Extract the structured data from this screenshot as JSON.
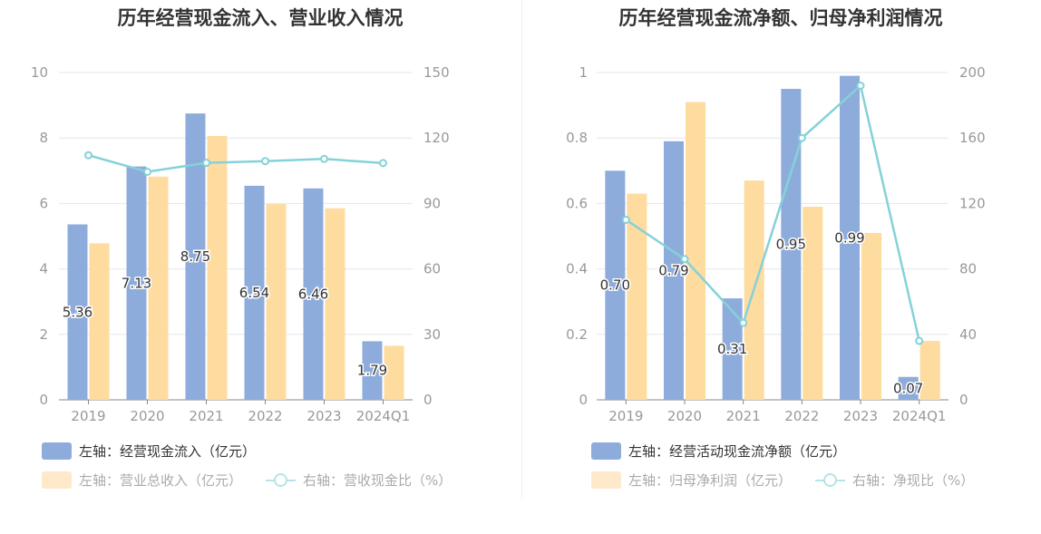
{
  "colors": {
    "bar1": "#8eacdb",
    "bar2": "#fedb9f",
    "line": "#84d2d8",
    "swatch_faded2": "#feeaca",
    "grid": "#e3e7f0",
    "axis": "#999999"
  },
  "chart_data": [
    {
      "type": "bar",
      "title": "历年经营现金流入、营业收入情况",
      "categories": [
        "2019",
        "2020",
        "2021",
        "2022",
        "2023",
        "2024Q1"
      ],
      "left_axis": {
        "ticks": [
          "0",
          "2",
          "4",
          "6",
          "8",
          "10"
        ],
        "ylim": [
          0,
          10
        ]
      },
      "right_axis": {
        "ticks": [
          "0",
          "30",
          "60",
          "90",
          "120",
          "150"
        ],
        "ylim": [
          0,
          150
        ]
      },
      "series": [
        {
          "name": "左轴：经营现金流入（亿元）",
          "type": "bar",
          "axis": "left",
          "values": [
            5.36,
            7.13,
            8.75,
            6.54,
            6.46,
            1.79
          ],
          "labels": [
            "5.36",
            "7.13",
            "8.75",
            "6.54",
            "6.46",
            "1.79"
          ]
        },
        {
          "name": "左轴：营业总收入（亿元）",
          "type": "bar",
          "axis": "left",
          "values": [
            4.78,
            6.82,
            8.06,
            5.98,
            5.85,
            1.65
          ]
        },
        {
          "name": "右轴：营收现金比（%）",
          "type": "line",
          "axis": "right",
          "values": [
            112.1,
            104.5,
            108.6,
            109.4,
            110.4,
            108.5
          ]
        }
      ],
      "legend_placement": "bottom-left",
      "grid": true
    },
    {
      "type": "bar",
      "title": "历年经营现金流净额、归母净利润情况",
      "categories": [
        "2019",
        "2020",
        "2021",
        "2022",
        "2023",
        "2024Q1"
      ],
      "left_axis": {
        "ticks": [
          "0",
          "0.2",
          "0.4",
          "0.6",
          "0.8",
          "1"
        ],
        "ylim": [
          0,
          1
        ]
      },
      "right_axis": {
        "ticks": [
          "0",
          "40",
          "80",
          "120",
          "160",
          "200"
        ],
        "ylim": [
          0,
          200
        ]
      },
      "series": [
        {
          "name": "左轴：经营活动现金流净额（亿元）",
          "type": "bar",
          "axis": "left",
          "values": [
            0.7,
            0.79,
            0.31,
            0.95,
            0.99,
            0.07
          ],
          "labels": [
            "0.70",
            "0.79",
            "0.31",
            "0.95",
            "0.99",
            "0.07"
          ]
        },
        {
          "name": "左轴：归母净利润（亿元）",
          "type": "bar",
          "axis": "left",
          "values": [
            0.63,
            0.91,
            0.67,
            0.59,
            0.51,
            0.18
          ]
        },
        {
          "name": "右轴：净现比（%）",
          "type": "line",
          "axis": "right",
          "values": [
            110,
            86,
            47,
            160,
            192,
            36
          ]
        }
      ],
      "legend_placement": "bottom-left",
      "grid": true
    }
  ]
}
